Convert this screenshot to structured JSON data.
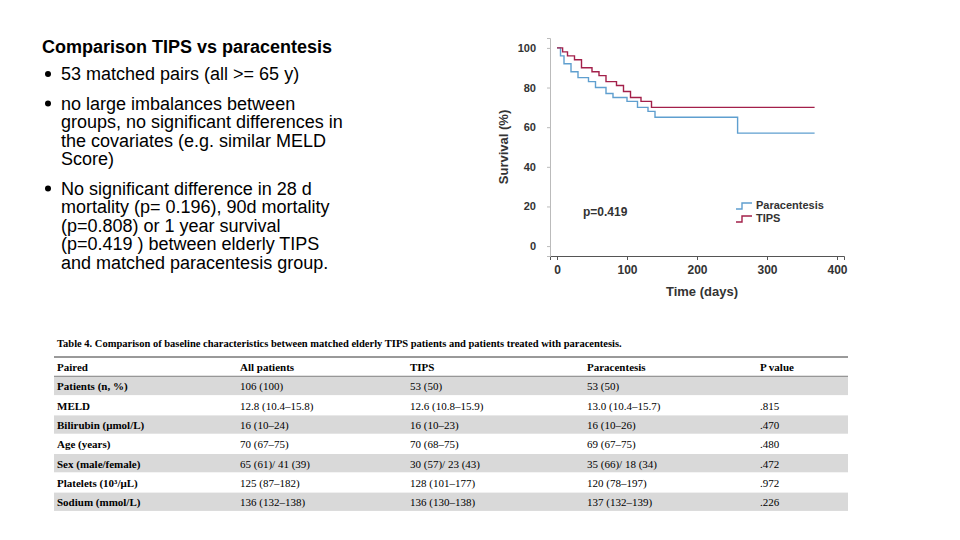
{
  "slide": {
    "title": "Comparison TIPS vs paracentesis",
    "bullets": [
      [
        "53 matched pairs (all >= 65 y)"
      ],
      [
        "no large imbalances between",
        "groups, no significant differences in",
        "the covariates (e.g. similar MELD",
        "Score)"
      ],
      [
        "No significant difference in 28 d",
        "mortality (p= 0.196), 90d mortality",
        "(p=0.808) or 1 year survival",
        "(p=0.419 ) between elderly TIPS",
        "and matched paracentesis group."
      ]
    ]
  },
  "chart_data": {
    "type": "line",
    "x_label": "Time (days)",
    "y_label": "Survival (%)",
    "annotation": "p=0.419",
    "xlim": [
      -10,
      410
    ],
    "ylim": [
      -5,
      105
    ],
    "xticks": [
      0,
      100,
      200,
      300,
      400
    ],
    "yticks": [
      0,
      20,
      40,
      60,
      80,
      100
    ],
    "legend": "lower right",
    "series": [
      {
        "name": "Paracentesis",
        "color": "#5f9fcf",
        "line_style": "step",
        "x": [
          0,
          5,
          10,
          20,
          30,
          45,
          55,
          70,
          80,
          100,
          115,
          130,
          140,
          258,
          368
        ],
        "values": [
          100,
          96,
          92,
          88,
          85,
          83,
          80,
          77,
          75,
          73,
          70,
          68,
          65,
          57,
          57
        ]
      },
      {
        "name": "TIPS",
        "color": "#a3204a",
        "line_style": "step",
        "x": [
          0,
          8,
          15,
          25,
          35,
          50,
          60,
          70,
          85,
          95,
          105,
          120,
          135,
          368
        ],
        "values": [
          100,
          98,
          96,
          94,
          90,
          88,
          86,
          83,
          81,
          78,
          75,
          73,
          70,
          70
        ]
      }
    ]
  },
  "table": {
    "caption": "Table 4.  Comparison of baseline characteristics between matched elderly TIPS patients and patients treated with paracentesis.",
    "header": [
      "Paired",
      "All patients",
      "TIPS",
      "Paracentesis",
      "P value"
    ],
    "rows": [
      [
        "Patients (n, %)",
        "106 (100)",
        "53 (50)",
        "53 (50)",
        null
      ],
      [
        "MELD",
        "12.8 (10.4–15.8)",
        "12.6 (10.8–15.9)",
        "13.0 (10.4–15.7)",
        ".815"
      ],
      [
        "Bilirubin (μmol/L)",
        "16 (10–24)",
        "16 (10–23)",
        "16 (10–26)",
        ".470"
      ],
      [
        "Age (years)",
        "70 (67–75)",
        "70 (68–75)",
        "69 (67–75)",
        ".480"
      ],
      [
        "Sex (male/female)",
        "65 (61)/ 41 (39)",
        "30 (57)/ 23 (43)",
        "35 (66)/ 18 (34)",
        ".472"
      ],
      [
        "Platelets (10³/μL)",
        "125 (87–182)",
        "128 (101–177)",
        "120 (78–197)",
        ".972"
      ],
      [
        "Sodium (mmol/L)",
        "136 (132–138)",
        "136 (130–138)",
        "137 (132–139)",
        ".226"
      ]
    ]
  }
}
